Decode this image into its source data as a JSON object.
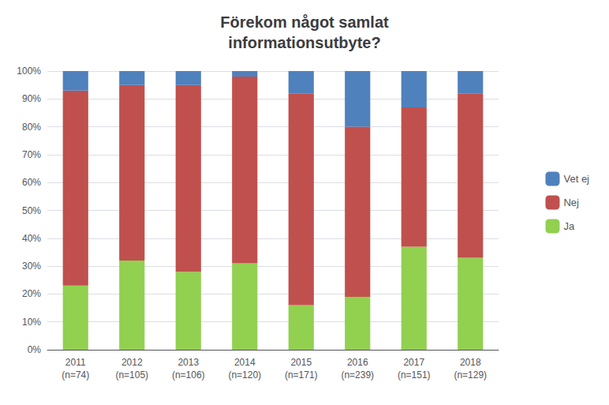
{
  "chart_data": {
    "type": "bar",
    "title": "Förekom något samlat\ninformationsutbyte?",
    "categories": [
      "2011\n(n=74)",
      "2012\n(n=105)",
      "2013\n(n=106)",
      "2014\n(n=120)",
      "2015\n(n=171)",
      "2016\n(n=239)",
      "2017\n(n=151)",
      "2018\n(n=129)"
    ],
    "series": [
      {
        "name": "Ja",
        "color": "#92D050",
        "values": [
          23,
          32,
          28,
          31,
          16,
          19,
          37,
          33
        ]
      },
      {
        "name": "Nej",
        "color": "#C0504D",
        "values": [
          70,
          63,
          67,
          67,
          76,
          61,
          50,
          59
        ]
      },
      {
        "name": "Vet ej",
        "color": "#4F81BD",
        "values": [
          7,
          5,
          5,
          2,
          8,
          20,
          13,
          8
        ]
      }
    ],
    "stacked": true,
    "ylim": [
      0,
      100
    ],
    "yticks": [
      {
        "value": 0,
        "label": "0%"
      },
      {
        "value": 10,
        "label": "10%"
      },
      {
        "value": 20,
        "label": "20%"
      },
      {
        "value": 30,
        "label": "30%"
      },
      {
        "value": 40,
        "label": "40%"
      },
      {
        "value": 50,
        "label": "50%"
      },
      {
        "value": 60,
        "label": "60%"
      },
      {
        "value": 70,
        "label": "70%"
      },
      {
        "value": 80,
        "label": "80%"
      },
      {
        "value": 90,
        "label": "90%"
      },
      {
        "value": 100,
        "label": "100%"
      }
    ],
    "grid": true,
    "legend": "right"
  }
}
